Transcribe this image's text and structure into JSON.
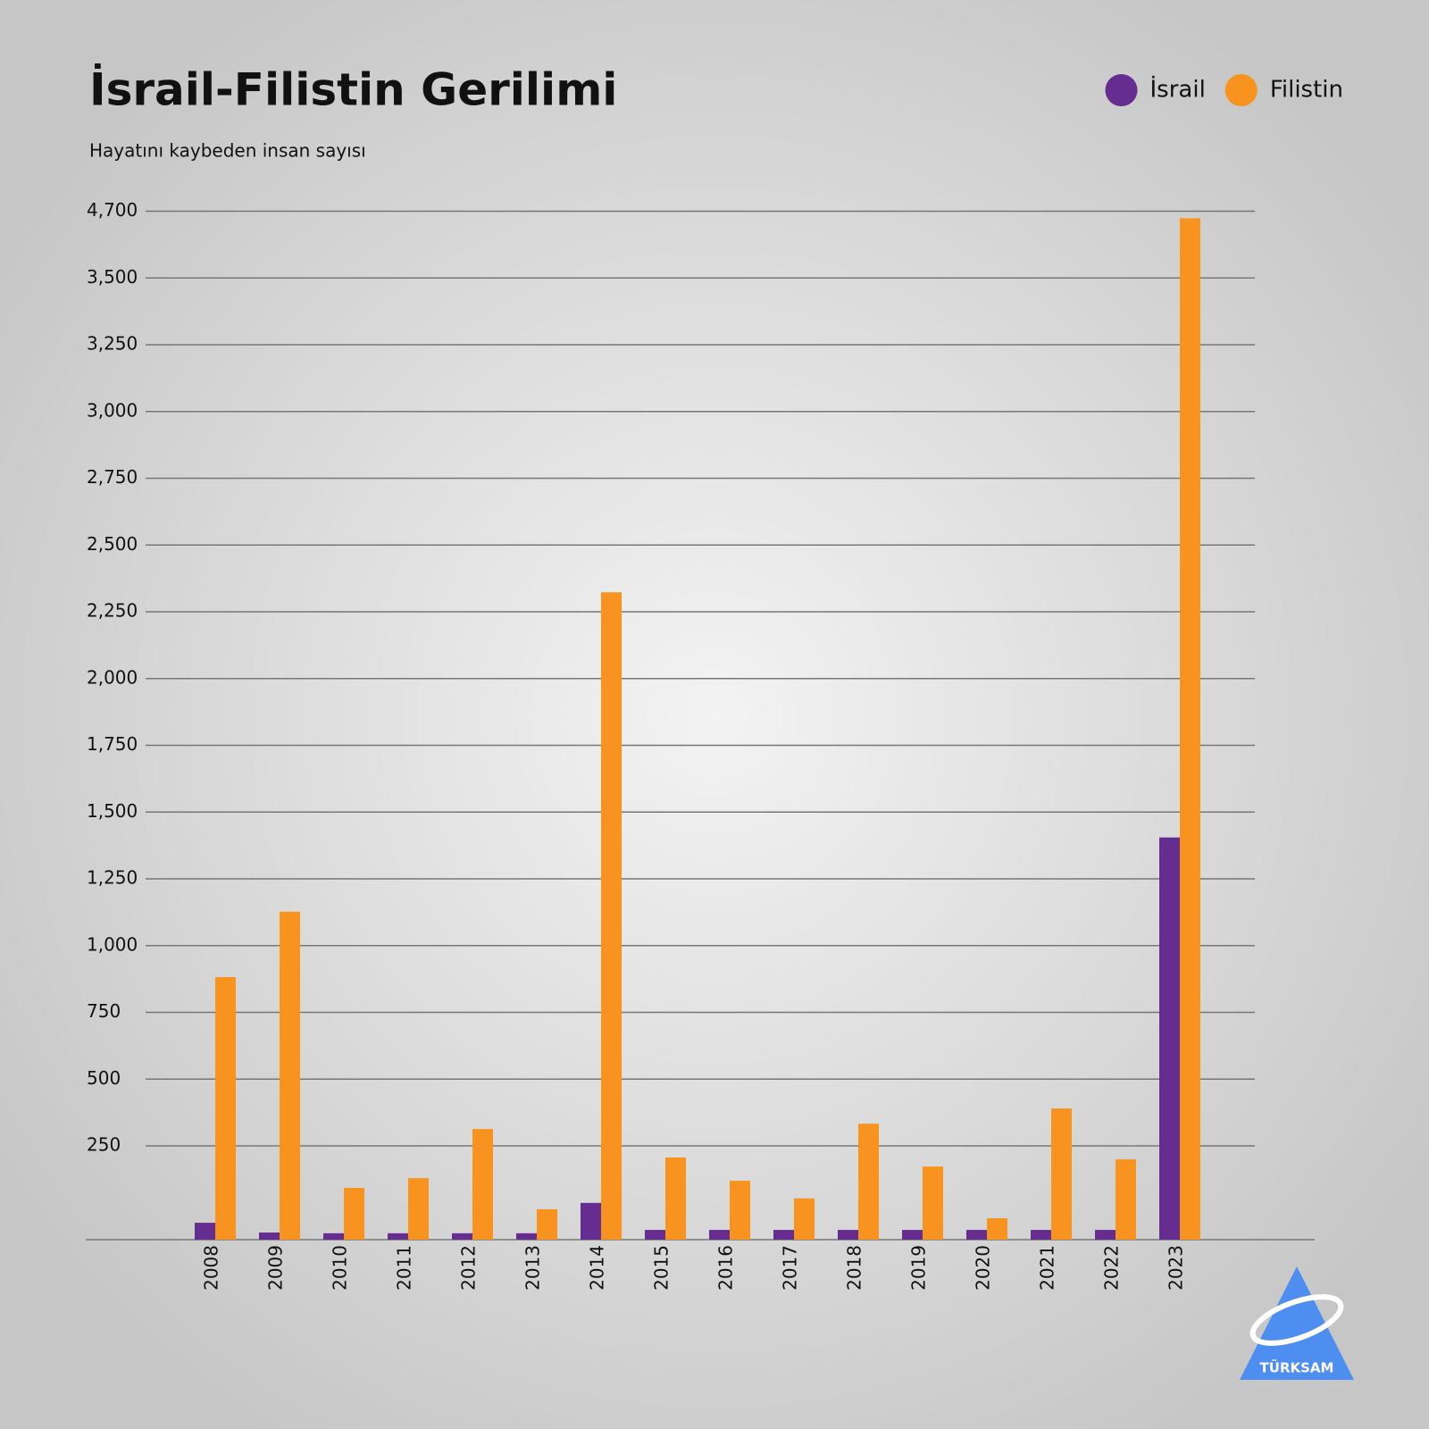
{
  "chart_data": {
    "type": "bar",
    "title": "İsrail-Filistin Gerilimi",
    "subtitle": "Hayatını kaybeden insan sayısı",
    "categories": [
      "2008",
      "2009",
      "2010",
      "2011",
      "2012",
      "2013",
      "2014",
      "2015",
      "2016",
      "2017",
      "2018",
      "2019",
      "2020",
      "2021",
      "2022",
      "2023"
    ],
    "series": [
      {
        "name": "İsrail",
        "color": "#662d91",
        "values": [
          45,
          19,
          17,
          17,
          17,
          17,
          98,
          26,
          26,
          26,
          26,
          26,
          26,
          26,
          26,
          1405
        ]
      },
      {
        "name": "Filistin",
        "color": "#f7931e",
        "values": [
          882,
          1127,
          138,
          164,
          313,
          81,
          2323,
          219,
          157,
          110,
          333,
          195,
          57,
          390,
          214,
          4572
        ]
      }
    ],
    "ylim": [
      0,
      4700
    ],
    "yticks": [
      {
        "value": 250,
        "label": "250"
      },
      {
        "value": 500,
        "label": "500"
      },
      {
        "value": 750,
        "label": "750"
      },
      {
        "value": 1000,
        "label": "1,000"
      },
      {
        "value": 1250,
        "label": "1,250"
      },
      {
        "value": 1500,
        "label": "1,500"
      },
      {
        "value": 1750,
        "label": "1,750"
      },
      {
        "value": 2000,
        "label": "2,000"
      },
      {
        "value": 2250,
        "label": "2,250"
      },
      {
        "value": 2500,
        "label": "2,500"
      },
      {
        "value": 2750,
        "label": "2,750"
      },
      {
        "value": 3000,
        "label": "3,000"
      },
      {
        "value": 3250,
        "label": "3,250"
      },
      {
        "value": 3500,
        "label": "3,500"
      },
      {
        "value": 4700,
        "label": "4,700"
      }
    ],
    "grid": true,
    "legend": "top-right",
    "logo": "TÜRKSAM"
  }
}
